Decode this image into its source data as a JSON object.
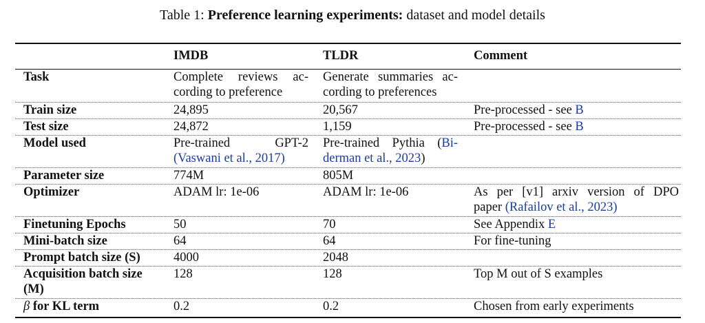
{
  "caption": {
    "prefix": "Table 1: ",
    "bold": "Preference learning experiments:",
    "rest": " dataset and model details"
  },
  "table": {
    "headers": [
      "",
      "IMDB",
      "TLDR",
      "Comment"
    ],
    "rows": [
      {
        "label": "Task",
        "imdb_lines": [
          "Complete reviews ac-",
          "cording to preference"
        ],
        "tldr_lines": [
          "Generate summaries ac-",
          "cording to preferences"
        ],
        "comment": ""
      },
      {
        "label": "Train size",
        "imdb": "24,895",
        "tldr": "20,567",
        "comment": "Pre-processed - see ",
        "comment_link": "B"
      },
      {
        "label": "Test size",
        "imdb": "24,872",
        "tldr": "1,159",
        "comment": "Pre-processed - see ",
        "comment_link": "B"
      },
      {
        "label": "Model used",
        "imdb_line1": "Pre-trained GPT-2",
        "imdb_cite": "(Vaswani et al., 2017)",
        "tldr_line1_text": "Pre-trained Pythia (",
        "tldr_line1_cite": "Bi-",
        "tldr_line2_cite": "derman et al., 2023",
        "tldr_line2_end": ")",
        "comment": ""
      },
      {
        "label": "Parameter size",
        "imdb": "774M",
        "tldr": "805M",
        "comment": ""
      },
      {
        "label": "Optimizer",
        "imdb": "ADAM lr: 1e-06",
        "tldr": "ADAM lr: 1e-06",
        "comment_line1": "As per [v1] arxiv version of DPO",
        "comment_line2_text": "paper ",
        "comment_line2_cite": "(Rafailov et al., 2023)"
      },
      {
        "label": "Finetuning Epochs",
        "imdb": "50",
        "tldr": "70",
        "comment": "See Appendix ",
        "comment_link": "E"
      },
      {
        "label": "Mini-batch size",
        "imdb": "64",
        "tldr": "64",
        "comment": "For fine-tuning"
      },
      {
        "label": "Prompt batch size (S)",
        "imdb": "4000",
        "tldr": "2048",
        "comment": ""
      },
      {
        "label_lines": [
          "Acquisition batch size",
          "(M)"
        ],
        "imdb": "128",
        "tldr": "128",
        "comment": "Top M out of S examples"
      },
      {
        "label_symbol": "β",
        "label_rest": " for KL term",
        "imdb": "0.2",
        "tldr": "0.2",
        "comment": "Chosen from early experiments"
      }
    ]
  }
}
